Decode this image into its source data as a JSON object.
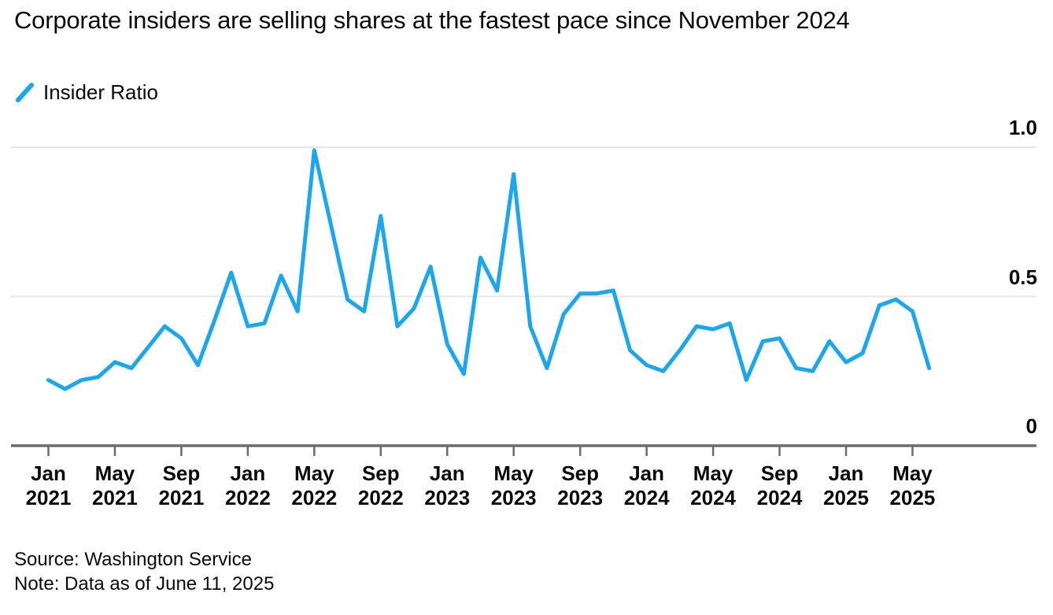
{
  "title": "Corporate insiders are selling shares at the fastest pace since November 2024",
  "legend": {
    "label": "Insider Ratio"
  },
  "footer": {
    "source": "Source: Washington Service",
    "note": "Note: Data as of June 11, 2025"
  },
  "chart_data": {
    "type": "line",
    "title": "Corporate insiders are selling shares at the fastest pace since November 2024",
    "x": [
      "Jan 2021",
      "Feb 2021",
      "Mar 2021",
      "Apr 2021",
      "May 2021",
      "Jun 2021",
      "Jul 2021",
      "Aug 2021",
      "Sep 2021",
      "Oct 2021",
      "Nov 2021",
      "Dec 2021",
      "Jan 2022",
      "Feb 2022",
      "Mar 2022",
      "Apr 2022",
      "May 2022",
      "Jun 2022",
      "Jul 2022",
      "Aug 2022",
      "Sep 2022",
      "Oct 2022",
      "Nov 2022",
      "Dec 2022",
      "Jan 2023",
      "Feb 2023",
      "Mar 2023",
      "Apr 2023",
      "May 2023",
      "Jun 2023",
      "Jul 2023",
      "Aug 2023",
      "Sep 2023",
      "Oct 2023",
      "Nov 2023",
      "Dec 2023",
      "Jan 2024",
      "Feb 2024",
      "Mar 2024",
      "Apr 2024",
      "May 2024",
      "Jun 2024",
      "Jul 2024",
      "Aug 2024",
      "Sep 2024",
      "Oct 2024",
      "Nov 2024",
      "Dec 2024",
      "Jan 2025",
      "Feb 2025",
      "Mar 2025",
      "Apr 2025",
      "May 2025",
      "Jun 2025"
    ],
    "series": [
      {
        "name": "Insider Ratio",
        "color": "#1aa7f1",
        "values": [
          0.22,
          0.19,
          0.22,
          0.23,
          0.28,
          0.26,
          0.33,
          0.4,
          0.36,
          0.27,
          0.42,
          0.58,
          0.4,
          0.41,
          0.57,
          0.45,
          0.99,
          0.74,
          0.49,
          0.45,
          0.77,
          0.4,
          0.46,
          0.6,
          0.34,
          0.24,
          0.63,
          0.52,
          0.91,
          0.4,
          0.26,
          0.44,
          0.51,
          0.51,
          0.52,
          0.32,
          0.27,
          0.25,
          0.32,
          0.4,
          0.39,
          0.41,
          0.22,
          0.35,
          0.36,
          0.26,
          0.25,
          0.35,
          0.28,
          0.31,
          0.47,
          0.49,
          0.45,
          0.26
        ]
      }
    ],
    "ylim": [
      0,
      1.0
    ],
    "yticks": [
      {
        "value": 0,
        "label": "0"
      },
      {
        "value": 0.5,
        "label": "0.5"
      },
      {
        "value": 1.0,
        "label": "1.0"
      }
    ],
    "xtick_every_n_months": 4,
    "grid": "horizontal",
    "legend_position": "top-left",
    "y_axis_side": "right",
    "colors": {
      "line": "#1aa7f1",
      "grid": "#e7e7e7",
      "axis": "#6b6b6b",
      "text": "#0a0a0a"
    }
  }
}
